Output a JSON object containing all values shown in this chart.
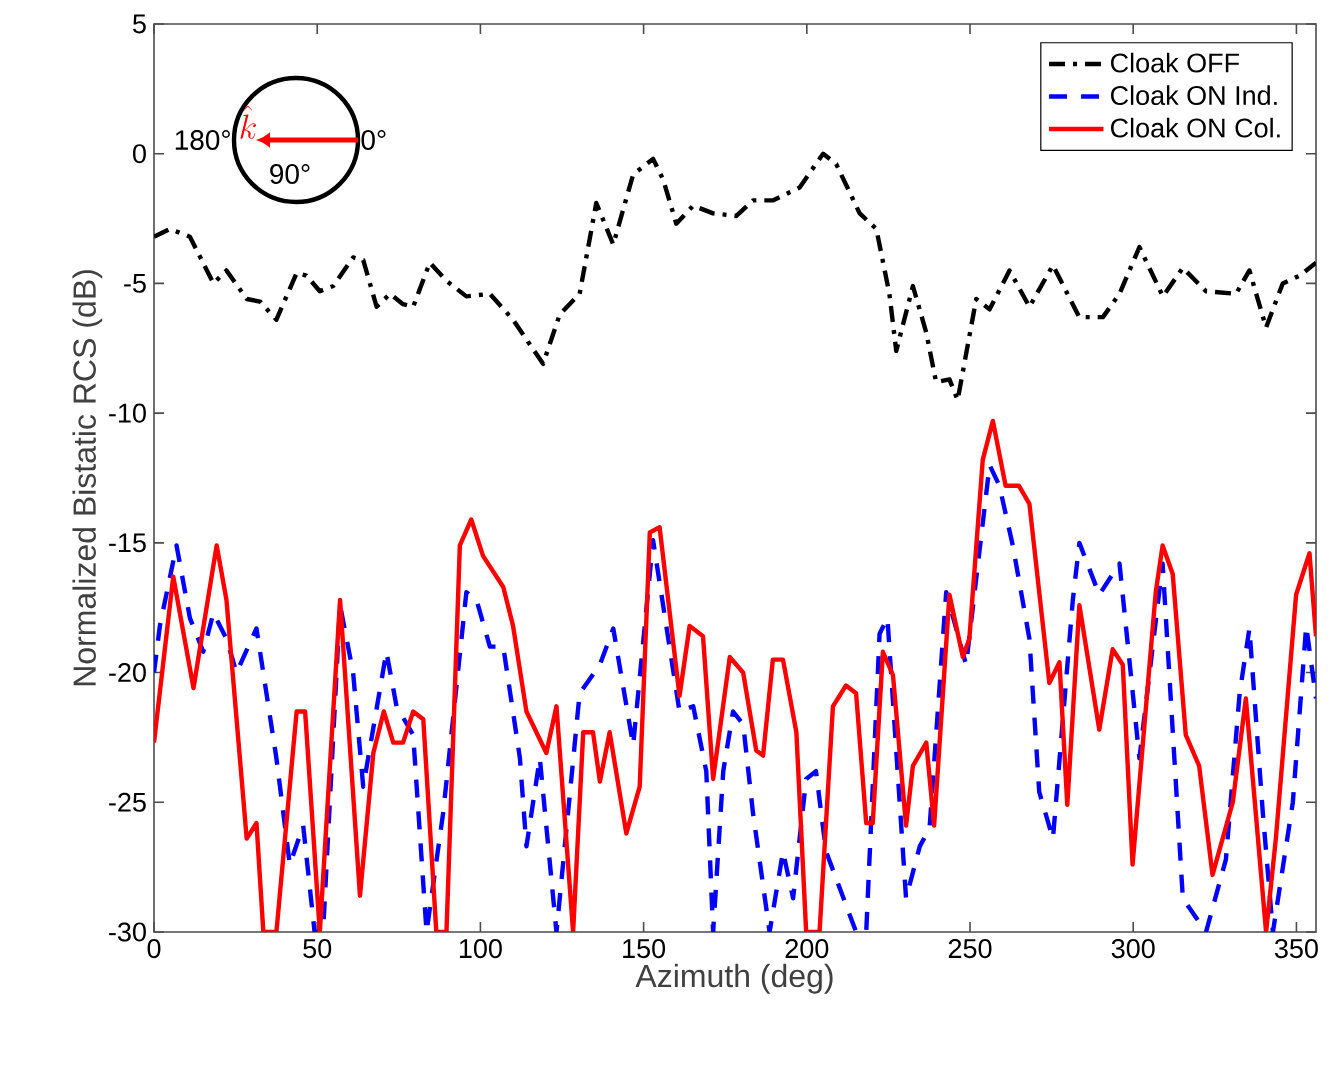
{
  "chart_data": {
    "type": "line",
    "xlabel": "Azimuth (deg)",
    "ylabel": "Normalized Bistatic RCS (dB)",
    "xlim": [
      0,
      356
    ],
    "ylim": [
      -30,
      5
    ],
    "xticks": [
      0,
      50,
      100,
      150,
      200,
      250,
      300,
      350
    ],
    "yticks": [
      -30,
      -25,
      -20,
      -15,
      -10,
      -5,
      0,
      5
    ],
    "grid": false,
    "legend": "top right",
    "annotations": [
      "180°",
      "0°",
      "90°",
      "\\hat{k}"
    ],
    "series": [
      {
        "name": "Cloak OFF",
        "color": "#000000",
        "line_style": "dashdot",
        "x": [
          0,
          4.9,
          11,
          18.2,
          22.2,
          28.4,
          32.5,
          37.5,
          43.7,
          46.7,
          50.8,
          54.9,
          61,
          64.1,
          68.2,
          72.3,
          76.3,
          79.4,
          84.5,
          89.6,
          95.7,
          102.9,
          110,
          119.2,
          124.3,
          130.4,
          135.5,
          140.7,
          146.8,
          152.9,
          156,
          160,
          165.2,
          171.3,
          178.4,
          183.5,
          189.6,
          197.8,
          205,
          209,
          216.2,
          221.3,
          225.3,
          227.4,
          232.5,
          236.6,
          239.6,
          243.7,
          246.2,
          251.9,
          256,
          262.1,
          268.2,
          275.4,
          283.5,
          290.7,
          295.8,
          301.9,
          309.1,
          315.2,
          322.3,
          331.5,
          335.6,
          340.7,
          345.8,
          351,
          356
        ],
        "values": [
          -3.2,
          -2.9,
          -3.2,
          -5.0,
          -4.5,
          -5.6,
          -5.7,
          -6.4,
          -4.6,
          -4.7,
          -5.3,
          -5.1,
          -4.0,
          -4.1,
          -5.9,
          -5.4,
          -5.8,
          -5.9,
          -4.2,
          -4.9,
          -5.5,
          -5.4,
          -6.4,
          -8.1,
          -6.2,
          -5.4,
          -1.9,
          -3.5,
          -0.8,
          -0.2,
          -1.0,
          -2.7,
          -2.0,
          -2.3,
          -2.4,
          -1.8,
          -1.8,
          -1.3,
          0.0,
          -0.4,
          -2.3,
          -2.9,
          -5.4,
          -7.6,
          -5.1,
          -6.9,
          -8.8,
          -8.7,
          -9.5,
          -5.6,
          -6.0,
          -4.5,
          -5.9,
          -4.3,
          -6.3,
          -6.3,
          -5.4,
          -3.6,
          -5.5,
          -4.4,
          -5.3,
          -5.4,
          -4.5,
          -6.7,
          -5.0,
          -4.7,
          -4.2
        ]
      },
      {
        "name": "Cloak ON Ind.",
        "color": "#0000ff",
        "line_style": "dashed",
        "x": [
          0,
          1.8,
          6.9,
          11,
          15.1,
          18.2,
          22.2,
          25.3,
          31.4,
          37.5,
          41.6,
          45.7,
          49.2,
          51.8,
          57,
          61,
          64.1,
          71.2,
          74.3,
          79.4,
          83.5,
          88.6,
          95.7,
          98.8,
          102.9,
          107,
          112.1,
          114.1,
          118.2,
          123.3,
          130.4,
          136.6,
          140.7,
          146.8,
          152.9,
          161,
          165.2,
          169.2,
          171.3,
          174.4,
          177.4,
          180.5,
          183.5,
          188.6,
          192.7,
          195.8,
          199.8,
          202.8,
          205.9,
          215.1,
          218.2,
          222.3,
          224.7,
          230.4,
          234.6,
          237.6,
          242.7,
          248.8,
          256,
          259,
          263.1,
          268.2,
          271.2,
          275.4,
          281.5,
          283.5,
          289.6,
          295.8,
          301.9,
          309,
          315.2,
          322.3,
          328.4,
          332.6,
          335.6,
          339.7,
          342.8,
          348.9,
          353,
          356
        ],
        "values": [
          -20,
          -18.2,
          -15.1,
          -17.9,
          -19.2,
          -17.7,
          -18.7,
          -20,
          -18.3,
          -23.3,
          -27.4,
          -25.9,
          -30,
          -30,
          -17.4,
          -20,
          -24.4,
          -19.2,
          -21.3,
          -22.4,
          -30,
          -25.4,
          -16.9,
          -17.2,
          -19,
          -19,
          -23.3,
          -26.7,
          -23.3,
          -30,
          -20.8,
          -19.7,
          -18.3,
          -22.8,
          -14.9,
          -21.5,
          -21.3,
          -23.8,
          -30,
          -23.8,
          -21.5,
          -22,
          -25.4,
          -30,
          -26.9,
          -28.7,
          -24.1,
          -23.8,
          -26.9,
          -30,
          -30,
          -18.5,
          -17.9,
          -28.7,
          -26.7,
          -26,
          -16.9,
          -19.7,
          -12.0,
          -12.8,
          -15.1,
          -18.7,
          -24.6,
          -26.4,
          -17.2,
          -15,
          -17,
          -15.8,
          -23.3,
          -15.8,
          -28.7,
          -30,
          -27.2,
          -20.8,
          -18.3,
          -25.4,
          -30,
          -25,
          -18.2,
          -21
        ]
      },
      {
        "name": "Cloak ON Col.",
        "color": "#ff0000",
        "line_style": "solid",
        "x": [
          0,
          5.9,
          12.1,
          19.2,
          22.2,
          28.4,
          31.4,
          33.5,
          37.5,
          43.7,
          46.3,
          50.8,
          57,
          63.1,
          67.2,
          70.4,
          73.3,
          76.3,
          79.4,
          82.5,
          86.5,
          89.6,
          93.7,
          97.2,
          100.8,
          107,
          110,
          114.1,
          120.2,
          123.3,
          128.4,
          131.5,
          134.5,
          136.6,
          139.6,
          144.7,
          148.8,
          151.9,
          154.9,
          161,
          164.1,
          168.2,
          171.3,
          176.4,
          180.5,
          184.5,
          186.6,
          189.6,
          192.7,
          196.8,
          199.8,
          203.9,
          208,
          212,
          215.1,
          218.2,
          220.2,
          223.3,
          226.4,
          230.4,
          232.5,
          236.6,
          239,
          243.7,
          247.8,
          249.8,
          253.9,
          257,
          260.9,
          265,
          268.2,
          274.3,
          277.4,
          279.8,
          283.5,
          289.6,
          293.7,
          296.8,
          299.8,
          306.9,
          309,
          312.1,
          316.1,
          320.2,
          324.3,
          330.5,
          334.5,
          340.7,
          343.7,
          349.9,
          354,
          356
        ],
        "values": [
          -22.7,
          -16.3,
          -20.6,
          -15.1,
          -17.2,
          -26.4,
          -25.8,
          -30,
          -30,
          -21.5,
          -21.5,
          -30,
          -17.2,
          -28.6,
          -23.1,
          -21.5,
          -22.7,
          -22.7,
          -21.5,
          -21.8,
          -30,
          -30,
          -15.1,
          -14.1,
          -15.5,
          -16.7,
          -18.2,
          -21.5,
          -23.1,
          -21.3,
          -30,
          -22.3,
          -22.3,
          -24.2,
          -22.3,
          -26.2,
          -24.4,
          -14.6,
          -14.4,
          -20.9,
          -18.2,
          -18.6,
          -24.1,
          -19.4,
          -20,
          -23,
          -23.2,
          -19.5,
          -19.5,
          -22.3,
          -30,
          -30,
          -21.3,
          -20.5,
          -20.8,
          -25.8,
          -25.8,
          -19.2,
          -20.1,
          -25.9,
          -23.6,
          -22.7,
          -25.9,
          -17,
          -19.4,
          -18.7,
          -11.8,
          -10.3,
          -12.8,
          -12.8,
          -13.5,
          -20.4,
          -19.6,
          -25.1,
          -17.4,
          -22.2,
          -19.1,
          -19.7,
          -27.4,
          -16.9,
          -15.1,
          -16.2,
          -22.4,
          -23.6,
          -27.8,
          -25,
          -21,
          -30,
          -26.4,
          -17,
          -15.4,
          -18.6
        ]
      }
    ]
  }
}
